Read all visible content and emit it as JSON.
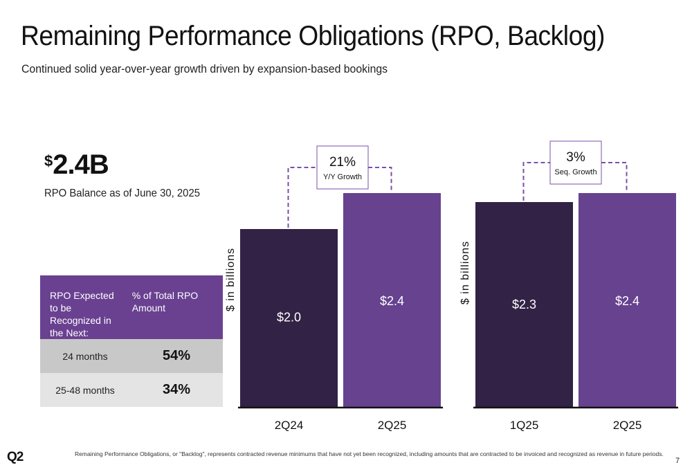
{
  "header": {
    "title": "Remaining Performance Obligations (RPO, Backlog)",
    "subtitle": "Continued solid year-over-year growth driven by expansion-based bookings"
  },
  "summary": {
    "currency_symbol": "$",
    "value": "2.4B",
    "label": "RPO Balance as of June 30, 2025"
  },
  "rpo_table": {
    "header_period": "RPO Expected to be Recognized in the Next:",
    "header_pct": "% of Total RPO Amount",
    "rows": [
      {
        "period": "24 months",
        "pct": "54%"
      },
      {
        "period": "25-48 months",
        "pct": "34%"
      }
    ]
  },
  "colors": {
    "dark_purple": "#322245",
    "light_purple": "#66428f",
    "dash_purple": "#7a4fa8",
    "table_header": "#6a4191"
  },
  "chart_data": [
    {
      "type": "bar",
      "categories": [
        "2Q24",
        "2Q25"
      ],
      "values": [
        2.0,
        2.4
      ],
      "value_labels": [
        "$2.0",
        "$2.4"
      ],
      "ylabel": "$ in billions",
      "annotation": {
        "value": "21%",
        "label": "Y/Y Growth"
      }
    },
    {
      "type": "bar",
      "categories": [
        "1Q25",
        "2Q25"
      ],
      "values": [
        2.3,
        2.4
      ],
      "value_labels": [
        "$2.3",
        "$2.4"
      ],
      "ylabel": "$ in billions",
      "annotation": {
        "value": "3%",
        "label": "Seq. Growth"
      }
    }
  ],
  "footer": {
    "footnote": "Remaining Performance Obligations, or \"Backlog\", represents contracted revenue minimums that have not yet been recognized, including amounts that are contracted to be invoiced and recognized as revenue in future periods.",
    "logo": "Q2",
    "page_number": "7"
  }
}
